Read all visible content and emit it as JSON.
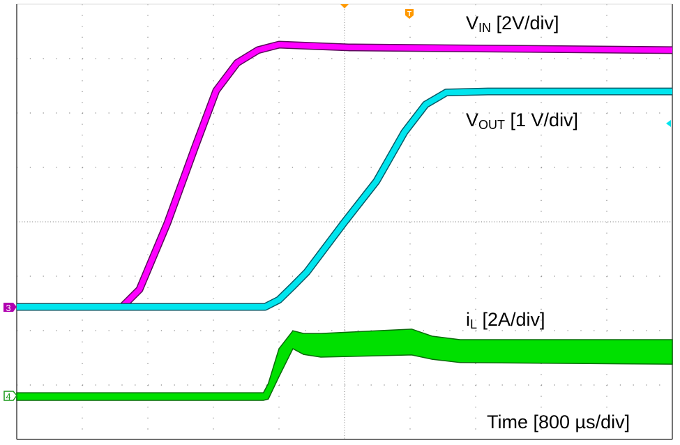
{
  "chart_data": {
    "type": "line",
    "title": "",
    "xlabel": "Time [800 µs/div]",
    "x_units": "ms",
    "xlim": [
      0,
      8
    ],
    "divisions": {
      "horizontal": 10,
      "vertical": 8
    },
    "grid": true,
    "series": [
      {
        "name": "VIN",
        "channel": "3",
        "scale": "2V/div",
        "color": "#ff00ff",
        "x": [
          0,
          1.285,
          1.498,
          1.838,
          2.179,
          2.434,
          2.689,
          2.945,
          3.2,
          3.626,
          4.051,
          8.0
        ],
        "y": [
          0,
          0,
          0.64,
          3.08,
          5.9,
          7.95,
          8.97,
          9.44,
          9.64,
          9.59,
          9.54,
          9.44
        ]
      },
      {
        "name": "VOUT",
        "scale": "1V/div",
        "color": "#00e5ee",
        "x": [
          0,
          3.03,
          3.2,
          3.37,
          3.54,
          4.0,
          4.39,
          4.73,
          4.99,
          5.24,
          5.75,
          8.0
        ],
        "y": [
          0,
          0,
          0.13,
          0.38,
          0.64,
          1.56,
          2.31,
          3.21,
          3.72,
          3.94,
          3.96,
          3.96
        ]
      },
      {
        "name": "iL",
        "channel": "4",
        "scale": "2A/div",
        "color": "#00e000",
        "x": [
          0,
          3.01,
          3.07,
          3.2,
          3.37,
          3.5,
          3.71,
          4.82,
          5.07,
          5.41,
          8.0
        ],
        "y_upper": [
          0.1,
          0.1,
          0.44,
          1.72,
          2.38,
          2.28,
          2.28,
          2.44,
          2.18,
          2.05,
          2.05
        ],
        "y_lower": [
          -0.18,
          -0.18,
          -0.13,
          0.69,
          1.72,
          1.51,
          1.41,
          1.49,
          1.33,
          1.21,
          1.15
        ]
      }
    ],
    "markers": {
      "ch3": "3",
      "ch4": "4",
      "trigger": "T"
    }
  },
  "labels": {
    "vin_main": "V",
    "vin_sub": "IN",
    "vin_scale": " [2V/div]",
    "vout_main": "V",
    "vout_sub": "OUT",
    "vout_scale": " [1 V/div]",
    "il_main": "i",
    "il_sub": "L",
    "il_scale": " [2A/div]",
    "time": "Time [800 µs/div]"
  }
}
